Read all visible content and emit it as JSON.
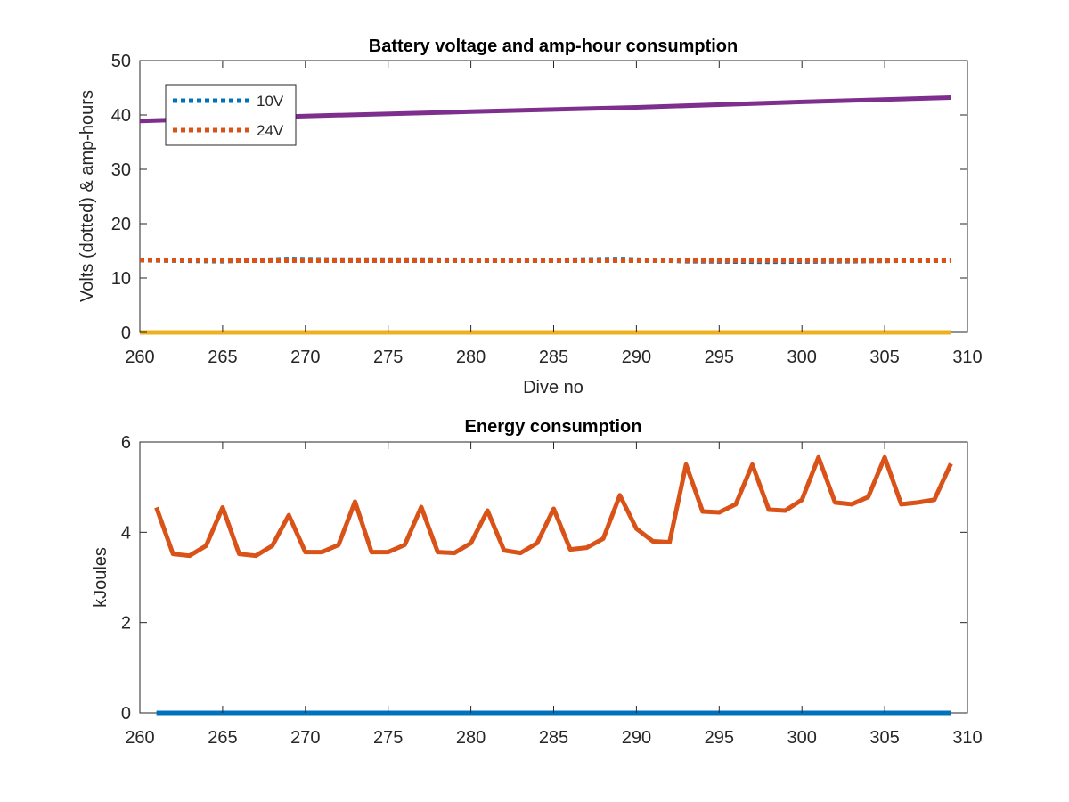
{
  "chart_data": [
    {
      "type": "line",
      "title": "Battery voltage and amp-hour consumption",
      "xlabel": "Dive no",
      "ylabel": "Volts (dotted) & amp-hours",
      "xlim": [
        260,
        310
      ],
      "ylim": [
        0,
        50
      ],
      "xticks": [
        260,
        265,
        270,
        275,
        280,
        285,
        290,
        295,
        300,
        305,
        310
      ],
      "yticks": [
        0,
        10,
        20,
        30,
        40,
        50
      ],
      "legend": {
        "placement": "top-left",
        "entries": [
          "10V",
          "24V"
        ]
      },
      "grid": false,
      "series": [
        {
          "name": "10V",
          "style": "dotted",
          "color": "#0072BD",
          "x": [
            260,
            265,
            269,
            272,
            278,
            284,
            289,
            293,
            298,
            303,
            309
          ],
          "y": [
            13.3,
            13.1,
            13.5,
            13.4,
            13.4,
            13.3,
            13.5,
            13.1,
            13.0,
            13.1,
            13.3
          ]
        },
        {
          "name": "24V",
          "style": "dotted",
          "color": "#D95319",
          "x": [
            260,
            265,
            270,
            275,
            280,
            285,
            290,
            295,
            300,
            305,
            309
          ],
          "y": [
            13.3,
            13.2,
            13.2,
            13.2,
            13.2,
            13.2,
            13.2,
            13.2,
            13.2,
            13.2,
            13.2
          ]
        },
        {
          "style": "solid",
          "color": "#EDB120",
          "x": [
            260,
            309
          ],
          "y": [
            0,
            0
          ]
        },
        {
          "style": "solid",
          "color": "#7E2F8E",
          "x": [
            260,
            270,
            280,
            290,
            300,
            309
          ],
          "y": [
            38.9,
            39.8,
            40.6,
            41.4,
            42.4,
            43.2
          ]
        }
      ]
    },
    {
      "type": "line",
      "title": "Energy consumption",
      "xlabel": "",
      "ylabel": "kJoules",
      "xlim": [
        260,
        310
      ],
      "ylim": [
        0,
        6
      ],
      "xticks": [
        260,
        265,
        270,
        275,
        280,
        285,
        290,
        295,
        300,
        305,
        310
      ],
      "yticks": [
        0,
        2,
        4,
        6
      ],
      "grid": false,
      "series": [
        {
          "style": "solid",
          "color": "#0072BD",
          "x": [
            261,
            309
          ],
          "y": [
            0,
            0
          ]
        },
        {
          "style": "solid",
          "color": "#D95319",
          "x": [
            261,
            262,
            263,
            264,
            265,
            266,
            267,
            268,
            269,
            270,
            271,
            272,
            273,
            274,
            275,
            276,
            277,
            278,
            279,
            280,
            281,
            282,
            283,
            284,
            285,
            286,
            287,
            288,
            289,
            290,
            291,
            292,
            293,
            294,
            295,
            296,
            297,
            298,
            299,
            300,
            301,
            302,
            303,
            304,
            305,
            306,
            307,
            308,
            309
          ],
          "y": [
            4.55,
            3.52,
            3.48,
            3.7,
            4.55,
            3.52,
            3.48,
            3.7,
            4.38,
            3.56,
            3.56,
            3.72,
            4.68,
            3.56,
            3.56,
            3.72,
            4.56,
            3.56,
            3.54,
            3.76,
            4.48,
            3.6,
            3.54,
            3.76,
            4.52,
            3.62,
            3.66,
            3.86,
            4.82,
            4.08,
            3.8,
            3.78,
            5.5,
            4.46,
            4.44,
            4.62,
            5.5,
            4.5,
            4.48,
            4.72,
            5.66,
            4.66,
            4.62,
            4.78,
            5.66,
            4.62,
            4.66,
            4.72,
            5.52
          ]
        }
      ]
    }
  ]
}
